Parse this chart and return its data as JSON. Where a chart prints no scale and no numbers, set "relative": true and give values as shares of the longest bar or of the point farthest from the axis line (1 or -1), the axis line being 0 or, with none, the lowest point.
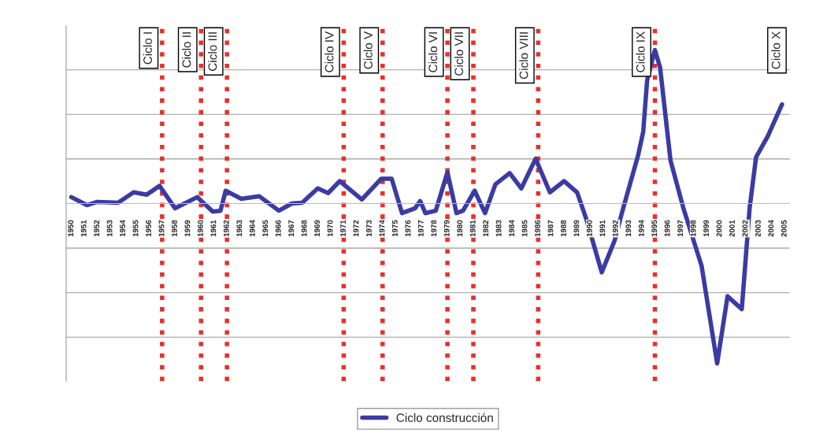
{
  "chart_data": {
    "type": "line",
    "relative": true,
    "x": [
      1950,
      1951.2,
      1952,
      1953.6,
      1954.8,
      1955.8,
      1956.8,
      1958,
      1959.7,
      1960.9,
      1961.5,
      1961.9,
      1963.1,
      1964.5,
      1966,
      1967,
      1967.8,
      1969,
      1969.8,
      1970.7,
      1972.4,
      1973.9,
      1974.7,
      1975.5,
      1976.5,
      1976.9,
      1977.3,
      1978.1,
      1979,
      1979.7,
      1980.2,
      1981.1,
      1981.9,
      1982.7,
      1983.8,
      1984.7,
      1985.8,
      1986.9,
      1988,
      1989,
      1989.7,
      1990.9,
      1991.9,
      1992.5,
      1993.7,
      1994.1,
      1994.4,
      1995,
      1995.4,
      1996.2,
      1997.2,
      1998.6,
      1999.8,
      2000.6,
      2001.7,
      2002.3,
      2002.8,
      2003.7,
      2004.8
    ],
    "series": [
      {
        "name": "Ciclo construcción",
        "color": "#3b3ba3",
        "values": [
          0.04,
          -0.01,
          0.01,
          0.005,
          0.07,
          0.055,
          0.11,
          -0.03,
          0.04,
          -0.05,
          -0.045,
          0.08,
          0.03,
          0.045,
          -0.045,
          0,
          0.005,
          0.095,
          0.065,
          0.14,
          0.025,
          0.155,
          0.155,
          -0.06,
          -0.03,
          0.015,
          -0.06,
          -0.045,
          0.195,
          -0.06,
          -0.045,
          0.08,
          -0.06,
          0.12,
          0.19,
          0.095,
          0.28,
          0.07,
          0.14,
          0.07,
          -0.095,
          -0.43,
          -0.23,
          -0.045,
          0.3,
          0.45,
          0.77,
          0.96,
          0.85,
          0.27,
          -0.03,
          -0.39,
          -1.0,
          -0.58,
          -0.66,
          -0.03,
          0.29,
          0.42,
          0.62
        ]
      }
    ],
    "xlim": [
      1949.6,
      2005.4
    ],
    "xticks": [
      1950,
      1951,
      1952,
      1953,
      1954,
      1955,
      1956,
      1957,
      1958,
      1959,
      1960,
      1961,
      1962,
      1963,
      1964,
      1965,
      1966,
      1967,
      1968,
      1969,
      1970,
      1971,
      1972,
      1973,
      1974,
      1975,
      1976,
      1977,
      1978,
      1979,
      1980,
      1981,
      1982,
      1983,
      1984,
      1985,
      1986,
      1987,
      1988,
      1989,
      1990,
      1991,
      1992,
      1993,
      1994,
      1995,
      1996,
      1997,
      1998,
      1999,
      2000,
      2001,
      2002,
      2003,
      2004,
      2005
    ],
    "tick_labels": "x",
    "ref_lines": [
      {
        "axis": "x",
        "value": 1957,
        "label": "Ciclo I",
        "color": "#e8302a",
        "line_style": "dotted"
      },
      {
        "axis": "x",
        "value": 1960,
        "label": "Ciclo II",
        "color": "#e8302a",
        "line_style": "dotted"
      },
      {
        "axis": "x",
        "value": 1962,
        "label": "Ciclo III",
        "color": "#e8302a",
        "line_style": "dotted"
      },
      {
        "axis": "x",
        "value": 1971,
        "label": "Ciclo IV",
        "color": "#e8302a",
        "line_style": "dotted"
      },
      {
        "axis": "x",
        "value": 1974,
        "label": "Ciclo V",
        "color": "#e8302a",
        "line_style": "dotted"
      },
      {
        "axis": "x",
        "value": 1979,
        "label": "Ciclo VI",
        "color": "#e8302a",
        "line_style": "dotted"
      },
      {
        "axis": "x",
        "value": 1981,
        "label": "Ciclo VII",
        "color": "#e8302a",
        "line_style": "dotted"
      },
      {
        "axis": "x",
        "value": 1986,
        "label": "Ciclo VIII",
        "color": "#e8302a",
        "line_style": "dotted"
      },
      {
        "axis": "x",
        "value": 1995,
        "label": "Ciclo IX",
        "color": "#e8302a",
        "line_style": "dotted"
      }
    ],
    "annotations": [
      "Ciclo X"
    ],
    "grid": "y",
    "legend": "bottom",
    "marker": "none",
    "line_style": "solid"
  }
}
